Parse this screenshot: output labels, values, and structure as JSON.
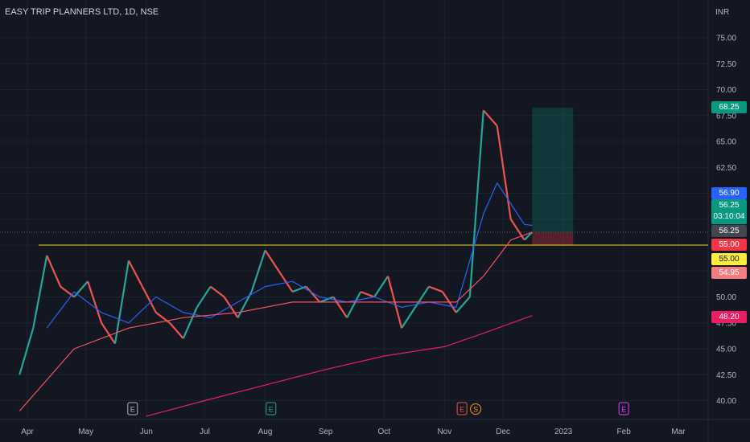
{
  "header": {
    "title": "EASY TRIP PLANNERS LTD, 1D, NSE",
    "currency": "INR"
  },
  "colors": {
    "background": "#131722",
    "up": "#26a69a",
    "down": "#ef5350",
    "ma_fast": "#2962ff",
    "ma_mid": "#f7525f",
    "ma_slow": "#e91e63",
    "support": "#f5d90a",
    "grid": "#1e222d",
    "axis_text": "#b2b5be"
  },
  "price_tags": [
    {
      "id": "target",
      "label": "68.25",
      "bg": "#089981"
    },
    {
      "id": "ma-fast",
      "label": "56.90",
      "bg": "#2962ff"
    },
    {
      "id": "last",
      "label": "56.25",
      "sub": "03:10:04",
      "bg": "#089981"
    },
    {
      "id": "ma-mid",
      "label": "56.25",
      "bg": "#434651"
    },
    {
      "id": "support-red",
      "label": "55.00",
      "bg": "#f23645"
    },
    {
      "id": "support-yellow",
      "label": "55.00",
      "bg": "#ffeb3b"
    },
    {
      "id": "stop",
      "label": "54.95",
      "bg": "#f77c80"
    },
    {
      "id": "ma-slow",
      "label": "48.20",
      "bg": "#e91e63"
    }
  ],
  "events": [
    {
      "kind": "earnings",
      "label": "E",
      "x": "2022-05-25",
      "color": "#b2b5be"
    },
    {
      "kind": "earnings",
      "label": "E",
      "x": "2022-08-04",
      "color": "#26a69a"
    },
    {
      "kind": "earnings",
      "label": "E",
      "x": "2022-11-10",
      "color": "#ef5350"
    },
    {
      "kind": "split",
      "label": "S",
      "x": "2022-11-17",
      "color": "#ff9800"
    },
    {
      "kind": "earnings",
      "label": "E",
      "x": "2023-02-01",
      "color": "#e040fb"
    }
  ],
  "chart_data": {
    "type": "line",
    "title": "EASY TRIP PLANNERS LTD, 1D, NSE",
    "currency": "INR",
    "xlabel": "",
    "ylabel": "",
    "ylim": [
      38.5,
      77.5
    ],
    "yticks": [
      "75.00",
      "72.50",
      "70.00",
      "67.50",
      "65.00",
      "62.50",
      "60.00",
      "57.50",
      "55.00",
      "52.50",
      "50.00",
      "47.50",
      "45.00",
      "42.50",
      "40.00"
    ],
    "xticks": [
      {
        "label": "Apr",
        "x": "2022-04-01"
      },
      {
        "label": "May",
        "x": "2022-05-01"
      },
      {
        "label": "Jun",
        "x": "2022-06-01"
      },
      {
        "label": "Jul",
        "x": "2022-07-01"
      },
      {
        "label": "Aug",
        "x": "2022-08-01"
      },
      {
        "label": "Sep",
        "x": "2022-09-01"
      },
      {
        "label": "Oct",
        "x": "2022-10-01"
      },
      {
        "label": "Nov",
        "x": "2022-11-01"
      },
      {
        "label": "Dec",
        "x": "2022-12-01"
      },
      {
        "label": "2023",
        "x": "2023-01-01"
      },
      {
        "label": "Feb",
        "x": "2023-02-01"
      },
      {
        "label": "Mar",
        "x": "2023-03-01"
      }
    ],
    "grid": true,
    "support_level": 55.0,
    "position": {
      "entry": 56.25,
      "target": 68.25,
      "stop": 54.95,
      "from": "2022-12-16",
      "to": "2023-01-06"
    },
    "price": {
      "x": [
        "2022-03-28",
        "2022-04-04",
        "2022-04-11",
        "2022-04-18",
        "2022-04-25",
        "2022-05-02",
        "2022-05-09",
        "2022-05-16",
        "2022-05-23",
        "2022-05-30",
        "2022-06-06",
        "2022-06-13",
        "2022-06-20",
        "2022-06-27",
        "2022-07-04",
        "2022-07-11",
        "2022-07-18",
        "2022-07-25",
        "2022-08-01",
        "2022-08-08",
        "2022-08-15",
        "2022-08-22",
        "2022-08-29",
        "2022-09-05",
        "2022-09-12",
        "2022-09-19",
        "2022-09-26",
        "2022-10-03",
        "2022-10-10",
        "2022-10-17",
        "2022-10-24",
        "2022-10-31",
        "2022-11-07",
        "2022-11-14",
        "2022-11-21",
        "2022-11-28",
        "2022-12-05",
        "2022-12-12",
        "2022-12-16"
      ],
      "y": [
        42.5,
        47.0,
        54.0,
        51.0,
        50.0,
        51.5,
        47.5,
        45.5,
        53.5,
        51.0,
        48.5,
        47.5,
        46.0,
        49.0,
        51.0,
        50.0,
        48.0,
        50.5,
        54.5,
        52.5,
        50.5,
        51.0,
        49.5,
        50.0,
        48.0,
        50.5,
        50.0,
        52.0,
        47.0,
        49.0,
        51.0,
        50.5,
        48.5,
        50.0,
        68.0,
        66.5,
        57.5,
        55.5,
        56.25
      ]
    },
    "series": [
      {
        "name": "",
        "color": "#2962ff",
        "x": [
          "2022-04-11",
          "2022-04-25",
          "2022-05-09",
          "2022-05-23",
          "2022-06-06",
          "2022-06-20",
          "2022-07-04",
          "2022-07-18",
          "2022-08-01",
          "2022-08-15",
          "2022-08-29",
          "2022-09-12",
          "2022-09-26",
          "2022-10-10",
          "2022-10-24",
          "2022-11-07",
          "2022-11-21",
          "2022-11-28",
          "2022-12-05",
          "2022-12-12",
          "2022-12-16"
        ],
        "y": [
          47.0,
          50.5,
          48.5,
          47.5,
          50.0,
          48.5,
          48.0,
          49.5,
          51.0,
          51.5,
          50.0,
          49.5,
          50.0,
          49.0,
          49.5,
          49.0,
          58.0,
          61.0,
          59.0,
          57.0,
          56.9
        ]
      },
      {
        "name": "",
        "color": "#f7525f",
        "x": [
          "2022-03-28",
          "2022-04-25",
          "2022-05-23",
          "2022-06-20",
          "2022-07-18",
          "2022-08-15",
          "2022-09-12",
          "2022-10-10",
          "2022-11-07",
          "2022-11-21",
          "2022-12-05",
          "2022-12-16"
        ],
        "y": [
          39.0,
          45.0,
          47.0,
          48.0,
          48.5,
          49.5,
          49.5,
          49.5,
          49.5,
          52.0,
          55.5,
          56.25
        ]
      },
      {
        "name": "",
        "color": "#e91e63",
        "x": [
          "2022-06-01",
          "2022-07-01",
          "2022-08-01",
          "2022-09-01",
          "2022-10-01",
          "2022-11-01",
          "2022-11-21",
          "2022-12-16"
        ],
        "y": [
          38.5,
          40.0,
          41.5,
          43.0,
          44.3,
          45.2,
          46.5,
          48.2
        ]
      }
    ]
  }
}
